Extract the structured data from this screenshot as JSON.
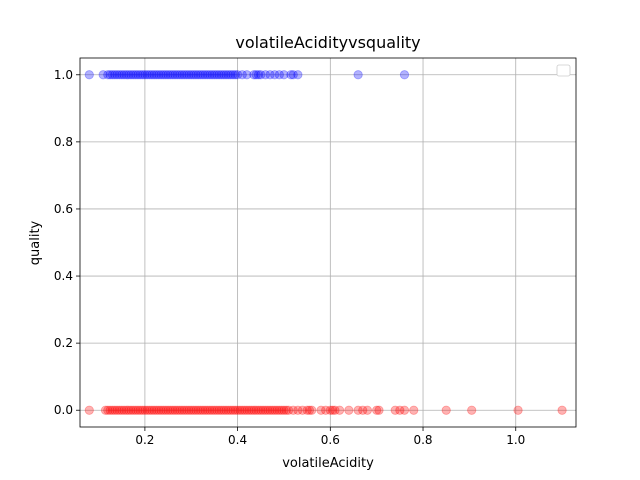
{
  "chart_data": {
    "type": "scatter",
    "title": "volatileAcidityvsquality",
    "xlabel": "volatileAcidity",
    "ylabel": "quality",
    "xlim": [
      0.06,
      1.13
    ],
    "ylim": [
      -0.05,
      1.05
    ],
    "xticks": [
      0.2,
      0.4,
      0.6,
      0.8,
      1.0
    ],
    "xtick_labels": [
      "0.2",
      "0.4",
      "0.6",
      "0.8",
      "1.0"
    ],
    "yticks": [
      0.0,
      0.2,
      0.4,
      0.6,
      0.8,
      1.0
    ],
    "ytick_labels": [
      "0.0",
      "0.2",
      "0.4",
      "0.6",
      "0.8",
      "1.0"
    ],
    "grid": true,
    "legend": {
      "placement": "upper-right",
      "entries": []
    },
    "series": [
      {
        "color": "#0000ff",
        "alpha": 0.3,
        "y": 1,
        "x": [
          0.08,
          0.11,
          0.12,
          0.125,
          0.13,
          0.135,
          0.14,
          0.145,
          0.15,
          0.155,
          0.16,
          0.165,
          0.17,
          0.175,
          0.18,
          0.185,
          0.19,
          0.195,
          0.2,
          0.205,
          0.21,
          0.215,
          0.22,
          0.225,
          0.23,
          0.235,
          0.24,
          0.245,
          0.25,
          0.255,
          0.26,
          0.265,
          0.27,
          0.275,
          0.28,
          0.285,
          0.29,
          0.295,
          0.3,
          0.305,
          0.31,
          0.315,
          0.32,
          0.325,
          0.33,
          0.335,
          0.34,
          0.345,
          0.35,
          0.355,
          0.36,
          0.365,
          0.37,
          0.375,
          0.38,
          0.385,
          0.39,
          0.395,
          0.4,
          0.41,
          0.42,
          0.435,
          0.44,
          0.445,
          0.45,
          0.46,
          0.47,
          0.48,
          0.49,
          0.5,
          0.515,
          0.52,
          0.53,
          0.66,
          0.76
        ]
      },
      {
        "color": "#ff0000",
        "alpha": 0.3,
        "y": 0,
        "x": [
          0.08,
          0.115,
          0.12,
          0.125,
          0.13,
          0.135,
          0.14,
          0.145,
          0.15,
          0.155,
          0.16,
          0.165,
          0.17,
          0.175,
          0.18,
          0.185,
          0.19,
          0.195,
          0.2,
          0.205,
          0.21,
          0.215,
          0.22,
          0.225,
          0.23,
          0.235,
          0.24,
          0.245,
          0.25,
          0.255,
          0.26,
          0.265,
          0.27,
          0.275,
          0.28,
          0.285,
          0.29,
          0.295,
          0.3,
          0.305,
          0.31,
          0.315,
          0.32,
          0.325,
          0.33,
          0.335,
          0.34,
          0.345,
          0.35,
          0.355,
          0.36,
          0.365,
          0.37,
          0.375,
          0.38,
          0.385,
          0.39,
          0.395,
          0.4,
          0.405,
          0.41,
          0.415,
          0.42,
          0.425,
          0.43,
          0.435,
          0.44,
          0.445,
          0.45,
          0.455,
          0.46,
          0.465,
          0.47,
          0.475,
          0.48,
          0.485,
          0.49,
          0.495,
          0.5,
          0.505,
          0.51,
          0.52,
          0.53,
          0.54,
          0.55,
          0.555,
          0.56,
          0.58,
          0.59,
          0.6,
          0.605,
          0.61,
          0.62,
          0.64,
          0.66,
          0.67,
          0.68,
          0.7,
          0.705,
          0.74,
          0.75,
          0.76,
          0.78,
          0.85,
          0.905,
          1.005,
          1.1
        ]
      }
    ]
  }
}
